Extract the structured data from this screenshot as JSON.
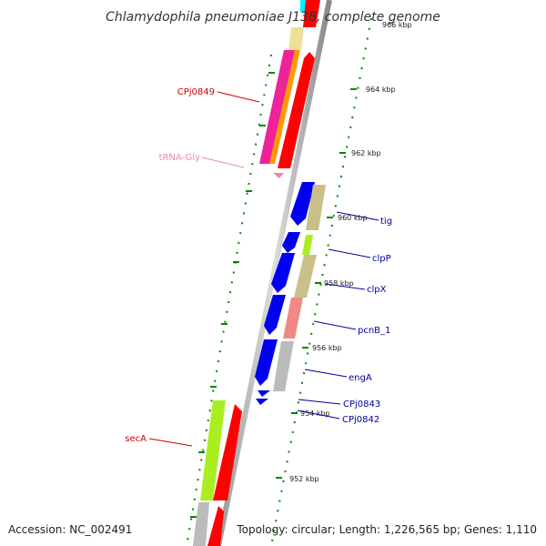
{
  "title": "Chlamydophila pneumoniae J138, complete genome",
  "accession": "Accession: NC_002491",
  "topology": "Topology: circular; Length: 1,226,565 bp; Genes: 1,110",
  "scale_labels": [
    "966 kbp",
    "964 kbp",
    "962 kbp",
    "960 kbp",
    "958 kbp",
    "956 kbp",
    "954 kbp",
    "952 kbp"
  ],
  "gene_labels": {
    "cpj0849": "CPj0849",
    "trna_gly": "tRNA-Gly",
    "tig": "tig",
    "clpp": "clpP",
    "clpx": "clpX",
    "pcnb": "pcnB_1",
    "enga": "engA",
    "cpj0843": "CPj0843",
    "cpj0842": "CPj0842",
    "seca": "secA"
  },
  "colors": {
    "forward_label": "#cc0000",
    "reverse_label": "#000099",
    "trna_label": "#ee88aa",
    "blue": "#0000ee",
    "red": "#ff0000",
    "green": "#aaee22",
    "olive": "#c8c088",
    "pink": "#f08888",
    "gray": "#bbbbbb",
    "magenta": "#ee2299",
    "orange": "#ff9900",
    "yellow": "#eee099",
    "cyan": "#00eeff",
    "scale": "#008800"
  }
}
